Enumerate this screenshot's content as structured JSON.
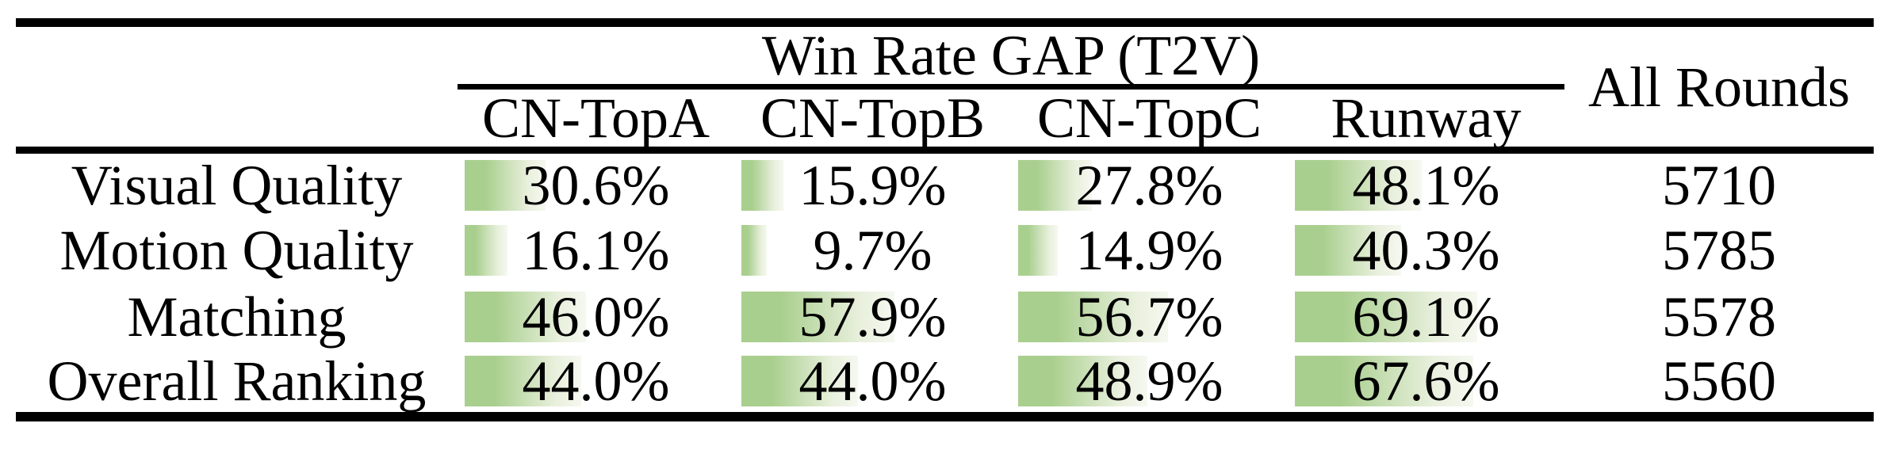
{
  "table": {
    "group_header": "Win Rate GAP (T2V)",
    "model_columns": [
      "CN-TopA",
      "CN-TopB",
      "CN-TopC",
      "Runway"
    ],
    "all_rounds_header": "All Rounds",
    "rows": [
      {
        "label": "Visual Quality",
        "values": [
          30.6,
          15.9,
          27.8,
          48.1
        ],
        "display": [
          "30.6%",
          "15.9%",
          "27.8%",
          "48.1%"
        ],
        "all_rounds": "5710"
      },
      {
        "label": "Motion Quality",
        "values": [
          16.1,
          9.7,
          14.9,
          40.3
        ],
        "display": [
          "16.1%",
          "9.7%",
          "14.9%",
          "40.3%"
        ],
        "all_rounds": "5785"
      },
      {
        "label": "Matching",
        "values": [
          46.0,
          57.9,
          56.7,
          69.1
        ],
        "display": [
          "46.0%",
          "57.9%",
          "56.7%",
          "69.1%"
        ],
        "all_rounds": "5578"
      },
      {
        "label": "Overall Ranking",
        "values": [
          44.0,
          44.0,
          48.9,
          67.6
        ],
        "display": [
          "44.0%",
          "44.0%",
          "48.9%",
          "67.6%"
        ],
        "all_rounds": "5560"
      }
    ],
    "bar_color": "#a9cf8e",
    "bar_fade_color": "#f5f8f0",
    "text_color": "#000000"
  },
  "chart_data": {
    "type": "table",
    "title": "Win Rate GAP (T2V)",
    "categories": [
      "Visual Quality",
      "Motion Quality",
      "Matching",
      "Overall Ranking"
    ],
    "series": [
      {
        "name": "CN-TopA",
        "values": [
          30.6,
          16.1,
          46.0,
          44.0
        ]
      },
      {
        "name": "CN-TopB",
        "values": [
          15.9,
          9.7,
          57.9,
          44.0
        ]
      },
      {
        "name": "CN-TopC",
        "values": [
          27.8,
          14.9,
          56.7,
          48.9
        ]
      },
      {
        "name": "Runway",
        "values": [
          48.1,
          40.3,
          69.1,
          67.6
        ]
      }
    ],
    "extra_column": {
      "name": "All Rounds",
      "values": [
        5710,
        5785,
        5578,
        5560
      ]
    },
    "value_unit": "%",
    "bar_scale_max": 100
  }
}
